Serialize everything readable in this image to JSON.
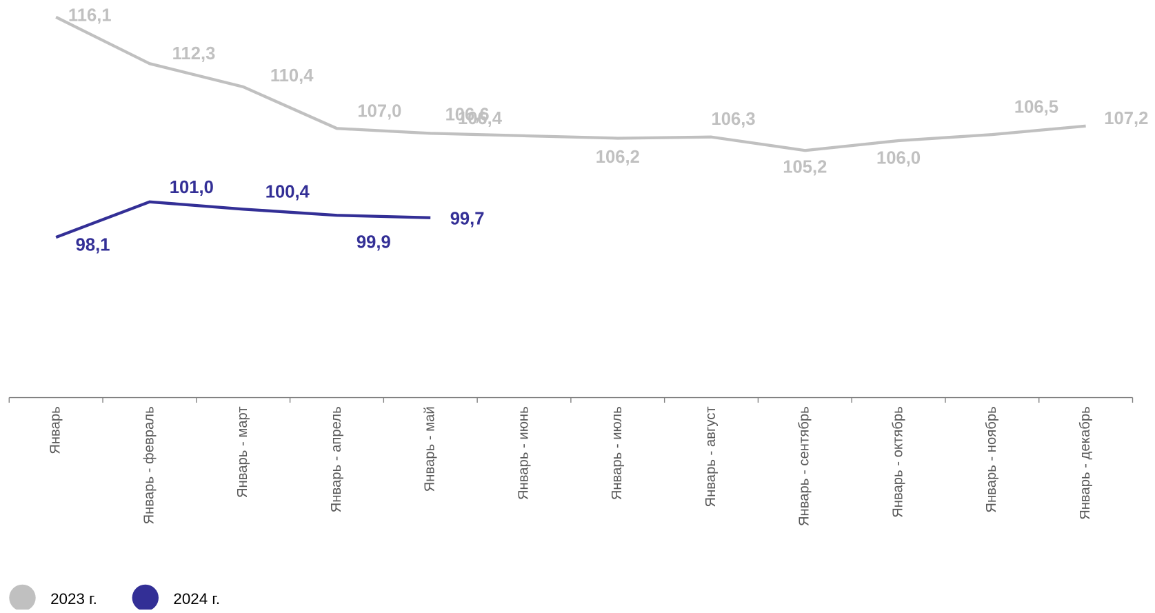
{
  "chart_data": {
    "type": "line",
    "categories": [
      "Январь",
      "Январь - февраль",
      "Январь - март",
      "Январь - апрель",
      "Январь - май",
      "Январь - июнь",
      "Январь - июль",
      "Январь - август",
      "Январь - сентябрь",
      "Январь - октябрь",
      "Январь - ноябрь",
      "Январь - декабрь"
    ],
    "ylim": [
      85,
      117.5
    ],
    "series": [
      {
        "name": "2023 г.",
        "color": "#c0c0c0",
        "values": [
          116.1,
          112.3,
          110.4,
          107.0,
          106.6,
          106.4,
          106.2,
          106.3,
          105.2,
          106.0,
          106.5,
          107.2
        ],
        "value_labels": [
          "116,1",
          "112,3",
          "110,4",
          "107,0",
          "106,6",
          "106,4",
          "106,2",
          "106,3",
          "105,2",
          "106,0",
          "106,5",
          "107,2"
        ]
      },
      {
        "name": "2024 г.",
        "color": "#332f96",
        "values": [
          98.1,
          101.0,
          100.4,
          99.9,
          99.7,
          null,
          null,
          null,
          null,
          null,
          null,
          null
        ],
        "value_labels": [
          "98,1",
          "101,0",
          "100,4",
          "99,9",
          "99,7",
          null,
          null,
          null,
          null,
          null,
          null,
          null
        ]
      }
    ]
  }
}
